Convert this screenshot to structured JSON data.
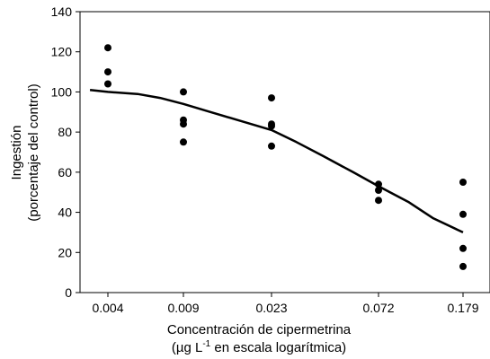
{
  "chart_data": {
    "type": "scatter",
    "title": "",
    "xlabel_line1": "Concentración de cipermetrina",
    "xlabel_line2_prefix": "(µg L",
    "xlabel_line2_superscript": "-1",
    "xlabel_line2_suffix": " en escala logarítmica)",
    "ylabel_line1": "Ingestión",
    "ylabel_line2": "(porcentaje del control)",
    "x_scale": "log",
    "x_ticks": [
      "0.004",
      "0.009",
      "0.023",
      "0.072",
      "0.179"
    ],
    "y_ticks": [
      "0",
      "20",
      "40",
      "60",
      "80",
      "100",
      "120",
      "140"
    ],
    "ylim": [
      0,
      140
    ],
    "grid": false,
    "legend": "none",
    "series": [
      {
        "type": "scatter",
        "points": [
          {
            "x": 0.004,
            "y": 122
          },
          {
            "x": 0.004,
            "y": 110
          },
          {
            "x": 0.004,
            "y": 104
          },
          {
            "x": 0.009,
            "y": 100
          },
          {
            "x": 0.009,
            "y": 86
          },
          {
            "x": 0.009,
            "y": 84
          },
          {
            "x": 0.009,
            "y": 75
          },
          {
            "x": 0.023,
            "y": 97
          },
          {
            "x": 0.023,
            "y": 84
          },
          {
            "x": 0.023,
            "y": 83
          },
          {
            "x": 0.023,
            "y": 73
          },
          {
            "x": 0.072,
            "y": 54
          },
          {
            "x": 0.072,
            "y": 51
          },
          {
            "x": 0.072,
            "y": 46
          },
          {
            "x": 0.179,
            "y": 55
          },
          {
            "x": 0.179,
            "y": 39
          },
          {
            "x": 0.179,
            "y": 22
          },
          {
            "x": 0.179,
            "y": 13
          }
        ]
      },
      {
        "type": "line",
        "points": [
          {
            "x": 0.0033,
            "y": 101
          },
          {
            "x": 0.004,
            "y": 100
          },
          {
            "x": 0.0055,
            "y": 99
          },
          {
            "x": 0.007,
            "y": 97
          },
          {
            "x": 0.009,
            "y": 94
          },
          {
            "x": 0.012,
            "y": 90
          },
          {
            "x": 0.016,
            "y": 86
          },
          {
            "x": 0.023,
            "y": 81
          },
          {
            "x": 0.03,
            "y": 75
          },
          {
            "x": 0.04,
            "y": 68
          },
          {
            "x": 0.055,
            "y": 60
          },
          {
            "x": 0.072,
            "y": 53
          },
          {
            "x": 0.1,
            "y": 45
          },
          {
            "x": 0.13,
            "y": 37
          },
          {
            "x": 0.179,
            "y": 30
          }
        ]
      }
    ],
    "colors": {
      "marker": "#000000",
      "line": "#000000",
      "axis": "#000000"
    }
  }
}
